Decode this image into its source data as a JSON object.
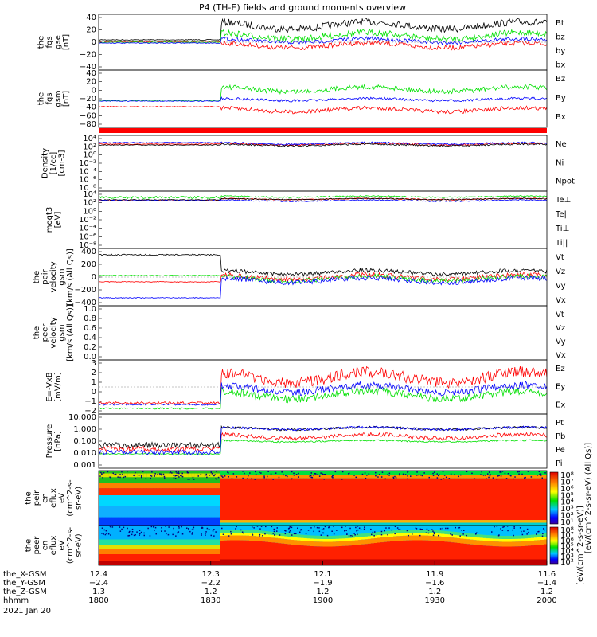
{
  "title": "P4 (TH-E) fields and ground moments overview",
  "colors": {
    "black": "#000000",
    "red": "#ff0000",
    "green": "#00e000",
    "blue": "#0000ff"
  },
  "chart_data": [
    {
      "type": "line",
      "id": "fgs_gse",
      "ylabel": [
        "the",
        "fgs",
        "gse",
        "[nT]"
      ],
      "ylim": [
        -40,
        40
      ],
      "ticks": [
        "40",
        "20",
        "0",
        "−20",
        "−40"
      ],
      "series": [
        {
          "name": "Bt",
          "color": "black"
        },
        {
          "name": "bz",
          "color": "red"
        },
        {
          "name": "by",
          "color": "green"
        },
        {
          "name": "bx",
          "color": "blue"
        }
      ]
    },
    {
      "type": "line",
      "id": "fgs_gsm",
      "ylabel": [
        "the",
        "fgs",
        "gsm",
        "[nT]"
      ],
      "ylim": [
        -80,
        40
      ],
      "ticks": [
        "40",
        "20",
        "0",
        "−20",
        "−40",
        "−60",
        "−80"
      ],
      "series": [
        {
          "name": "Bz",
          "color": "red"
        },
        {
          "name": "By",
          "color": "green"
        },
        {
          "name": "Bx",
          "color": "blue"
        }
      ]
    },
    {
      "type": "line",
      "id": "density",
      "ylabel": [
        "Density",
        "[1/cc]",
        "[cm-3]"
      ],
      "ticks": [
        "10⁴",
        "10²",
        "10⁰",
        "10⁻²",
        "10⁻⁴",
        "10⁻⁶",
        "10⁻⁸"
      ],
      "series": [
        {
          "name": "Ne",
          "color": "red"
        },
        {
          "name": "Ni",
          "color": "black"
        },
        {
          "name": "Npot",
          "color": "blue"
        }
      ]
    },
    {
      "type": "line",
      "id": "temperature",
      "ylabel": [
        "moqt3",
        "[eV]"
      ],
      "ticks": [
        "10⁴",
        "10²",
        "10⁰",
        "10⁻²",
        "10⁻⁴",
        "10⁻⁶",
        "10⁻⁸"
      ],
      "series": [
        {
          "name": "Te⊥",
          "color": "red"
        },
        {
          "name": "Te||",
          "color": "black"
        },
        {
          "name": "Ti⊥",
          "color": "blue"
        },
        {
          "name": "Ti||",
          "color": "green"
        }
      ]
    },
    {
      "type": "line",
      "id": "peir_velocity",
      "ylabel": [
        "the",
        "peir",
        "velocity",
        "gsm",
        "[km/s (All Qs)]"
      ],
      "ylim": [
        -400,
        400
      ],
      "ticks": [
        "400",
        "200",
        "0",
        "−200",
        "−400"
      ],
      "series": [
        {
          "name": "Vt",
          "color": "black"
        },
        {
          "name": "Vz",
          "color": "red"
        },
        {
          "name": "Vy",
          "color": "green"
        },
        {
          "name": "Vx",
          "color": "blue"
        }
      ]
    },
    {
      "type": "line",
      "id": "peer_velocity",
      "ylabel": [
        "the",
        "peer",
        "velocity",
        "gsm",
        "[km/s (All Qs)]"
      ],
      "ylim": [
        0,
        1
      ],
      "ticks": [
        "1.0",
        "0.8",
        "0.6",
        "0.4",
        "0.2",
        "0.0"
      ],
      "series": [
        {
          "name": "Vt",
          "color": "black"
        },
        {
          "name": "Vz",
          "color": "red"
        },
        {
          "name": "Vy",
          "color": "green"
        },
        {
          "name": "Vx",
          "color": "blue"
        }
      ]
    },
    {
      "type": "line",
      "id": "efield",
      "ylabel": [
        "E=-VxB",
        "[mV/m]"
      ],
      "ylim": [
        -2,
        3
      ],
      "ticks": [
        "3",
        "2",
        "1",
        "0",
        "−1",
        "−2"
      ],
      "series": [
        {
          "name": "Ez",
          "color": "red"
        },
        {
          "name": "Ey",
          "color": "green"
        },
        {
          "name": "Ex",
          "color": "blue"
        }
      ]
    },
    {
      "type": "line",
      "id": "pressure",
      "ylabel": [
        "Pressure",
        "[nPa]"
      ],
      "ticks": [
        "10.000",
        "1.000",
        "0.100",
        "0.010",
        "0.001"
      ],
      "series": [
        {
          "name": "Pt",
          "color": "black"
        },
        {
          "name": "Pb",
          "color": "red"
        },
        {
          "name": "Pe",
          "color": "green"
        },
        {
          "name": "Pi",
          "color": "blue"
        }
      ]
    },
    {
      "type": "heatmap",
      "id": "peir_spec",
      "ylabel": [
        "the",
        "peir",
        "en",
        "eflux",
        "eV",
        "(cm^2-s-",
        "sr-eV)"
      ],
      "ticks": [
        "10000",
        "1000",
        "100",
        "10"
      ],
      "colorbar_label": "[eV/(cm^2-s-sr-eV) (All Qs)]",
      "colorbar_ticks": [
        "10⁸",
        "10⁷",
        "10⁶",
        "10⁵",
        "10⁴",
        "10³",
        "10²",
        "10¹"
      ]
    },
    {
      "type": "heatmap",
      "id": "peer_spec",
      "ylabel": [
        "the",
        "peer",
        "en",
        "eflux",
        "eV",
        "(cm^2-s-",
        "sr-eV)"
      ],
      "ticks": [
        "10000",
        "1000",
        "100",
        "10"
      ],
      "colorbar_label": "[eV/(cm^2-s-sr-eV)]",
      "colorbar_ticks": [
        "10⁸",
        "10⁷",
        "10⁶",
        "10⁵",
        "10⁴",
        "10³",
        "10²"
      ]
    }
  ],
  "xaxis": {
    "row_labels": [
      "the_X-GSM",
      "the_Y-GSM",
      "the_Z-GSM",
      "hhmm"
    ],
    "date": "2021 Jan 20",
    "columns": [
      {
        "x": "12.4",
        "y": "−2.4",
        "z": "1.3",
        "t": "1800"
      },
      {
        "x": "12.3",
        "y": "−2.2",
        "z": "1.2",
        "t": "1830"
      },
      {
        "x": "12.1",
        "y": "−1.9",
        "z": "1.2",
        "t": "1900"
      },
      {
        "x": "11.9",
        "y": "−1.6",
        "z": "1.2",
        "t": "1930"
      },
      {
        "x": "11.6",
        "y": "−1.4",
        "z": "1.2",
        "t": "2000"
      }
    ]
  }
}
